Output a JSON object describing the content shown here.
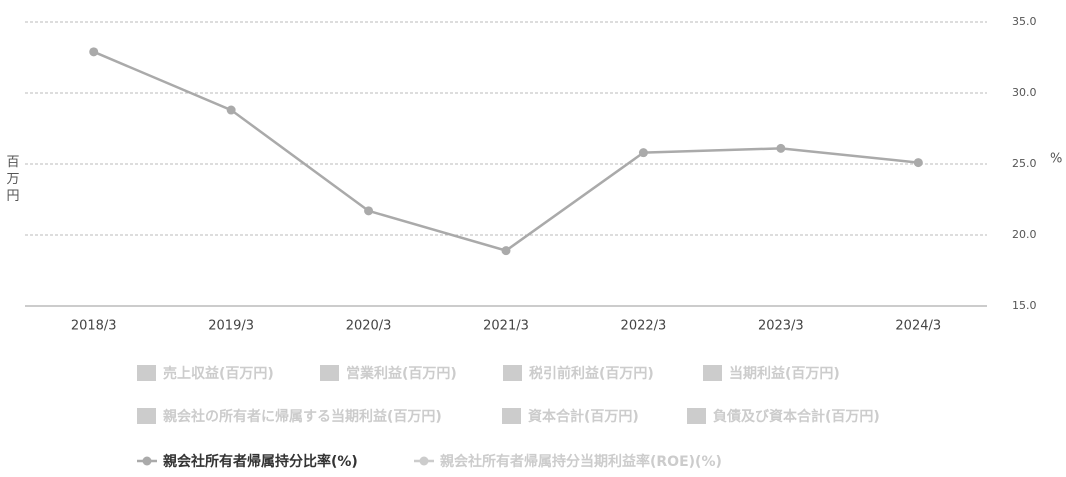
{
  "chart_data": {
    "type": "line",
    "y_label": "百万円",
    "y2_label": "%",
    "categories": [
      "2018/3",
      "2019/3",
      "2020/3",
      "2021/3",
      "2022/3",
      "2023/3",
      "2024/3"
    ],
    "y2lim": [
      15,
      35
    ],
    "y2ticks": [
      {
        "value": 15,
        "label": "15.0"
      },
      {
        "value": 20,
        "label": "20.0"
      },
      {
        "value": 25,
        "label": "25.0"
      },
      {
        "value": 30,
        "label": "30.0"
      },
      {
        "value": 35,
        "label": "35.0"
      }
    ],
    "grid": true,
    "series": [
      {
        "name": "売上収益(百万円)",
        "type": "bar",
        "visible": false,
        "color": "#cccccc",
        "values": [
          null,
          null,
          null,
          null,
          null,
          null,
          null
        ]
      },
      {
        "name": "営業利益(百万円)",
        "type": "bar",
        "visible": false,
        "color": "#cccccc",
        "values": [
          null,
          null,
          null,
          null,
          null,
          null,
          null
        ]
      },
      {
        "name": "税引前利益(百万円)",
        "type": "bar",
        "visible": false,
        "color": "#cccccc",
        "values": [
          null,
          null,
          null,
          null,
          null,
          null,
          null
        ]
      },
      {
        "name": "当期利益(百万円)",
        "type": "bar",
        "visible": false,
        "color": "#cccccc",
        "values": [
          null,
          null,
          null,
          null,
          null,
          null,
          null
        ]
      },
      {
        "name": "親会社の所有者に帰属する当期利益(百万円)",
        "type": "bar",
        "visible": false,
        "color": "#cccccc",
        "values": [
          null,
          null,
          null,
          null,
          null,
          null,
          null
        ]
      },
      {
        "name": "資本合計(百万円)",
        "type": "bar",
        "visible": false,
        "color": "#cccccc",
        "values": [
          null,
          null,
          null,
          null,
          null,
          null,
          null
        ]
      },
      {
        "name": "負債及び資本合計(百万円)",
        "type": "bar",
        "visible": false,
        "color": "#cccccc",
        "values": [
          null,
          null,
          null,
          null,
          null,
          null,
          null
        ]
      },
      {
        "name": "親会社所有者帰属持分比率(%)",
        "type": "line",
        "visible": true,
        "axis": "y2",
        "color": "#aaaaaa",
        "values": [
          32.9,
          28.8,
          21.7,
          18.9,
          25.8,
          26.1,
          25.1
        ]
      },
      {
        "name": "親会社所有者帰属持分当期利益率(ROE)(%)",
        "type": "line",
        "visible": false,
        "axis": "y2",
        "color": "#cccccc",
        "values": [
          null,
          null,
          null,
          null,
          null,
          null,
          null
        ]
      }
    ]
  }
}
